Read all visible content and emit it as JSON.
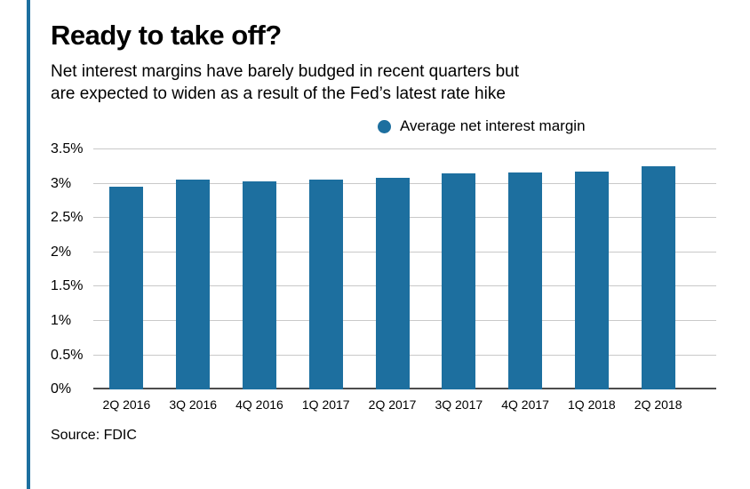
{
  "accent_color": "#1d6f9f",
  "header": {
    "title": "Ready to take off?",
    "subtitle_lines": [
      "Net interest margins have barely budged in recent quarters but",
      "are expected to widen as a result of the Fed’s latest rate hike"
    ]
  },
  "legend": {
    "label": "Average net interest margin",
    "marker_color": "#1d6f9f"
  },
  "source": "Source: FDIC",
  "chart_data": {
    "type": "bar",
    "title": "Ready to take off?",
    "subtitle": "Net interest margins have barely budged in recent quarters but are expected to widen as a result of the Fed’s latest rate hike",
    "series_name": "Average net interest margin",
    "categories": [
      "2Q 2016",
      "3Q 2016",
      "4Q 2016",
      "1Q 2017",
      "2Q 2017",
      "3Q 2017",
      "4Q 2017",
      "1Q 2018",
      "2Q 2018"
    ],
    "values": [
      2.96,
      3.06,
      3.04,
      3.06,
      3.09,
      3.15,
      3.17,
      3.18,
      3.26
    ],
    "xlabel": "",
    "ylabel": "",
    "ylim": [
      0,
      3.5
    ],
    "yticks": [
      0,
      0.5,
      1,
      1.5,
      2,
      2.5,
      3,
      3.5
    ],
    "ytick_labels": [
      "0%",
      "0.5%",
      "1%",
      "1.5%",
      "2%",
      "2.5%",
      "3%",
      "3.5%"
    ],
    "grid": true,
    "legend_position": "top",
    "bar_color": "#1d6f9f",
    "source": "Source: FDIC"
  }
}
